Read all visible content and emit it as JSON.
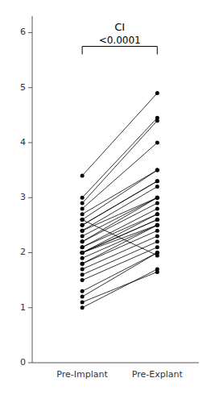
{
  "chart_data": {
    "type": "paired",
    "title": "CI",
    "categories": [
      "Pre-Implant",
      "Pre-Explant"
    ],
    "pairs": [
      [
        1.0,
        1.7
      ],
      [
        1.1,
        1.65
      ],
      [
        1.2,
        2.0
      ],
      [
        1.3,
        2.0
      ],
      [
        1.5,
        2.1
      ],
      [
        1.6,
        2.2
      ],
      [
        1.7,
        2.3
      ],
      [
        1.8,
        2.4
      ],
      [
        1.8,
        2.5
      ],
      [
        1.9,
        2.5
      ],
      [
        2.0,
        2.5
      ],
      [
        2.0,
        2.6
      ],
      [
        2.0,
        2.6
      ],
      [
        2.0,
        2.7
      ],
      [
        2.1,
        2.7
      ],
      [
        2.1,
        2.8
      ],
      [
        2.2,
        2.9
      ],
      [
        2.2,
        3.0
      ],
      [
        2.3,
        3.0
      ],
      [
        2.4,
        3.0
      ],
      [
        2.4,
        3.2
      ],
      [
        2.5,
        3.3
      ],
      [
        2.5,
        3.3
      ],
      [
        2.6,
        3.5
      ],
      [
        2.7,
        3.5
      ],
      [
        2.8,
        4.0
      ],
      [
        2.9,
        4.4
      ],
      [
        3.0,
        4.45
      ],
      [
        3.4,
        4.9
      ],
      [
        2.6,
        1.95
      ]
    ],
    "color": "#000000",
    "annotations": [
      {
        "text": "<0.0001",
        "y": 5.75
      }
    ],
    "ylim": [
      0,
      6.3
    ],
    "yticks": [
      0,
      1,
      2,
      3,
      4,
      5,
      6
    ],
    "grid": false
  }
}
